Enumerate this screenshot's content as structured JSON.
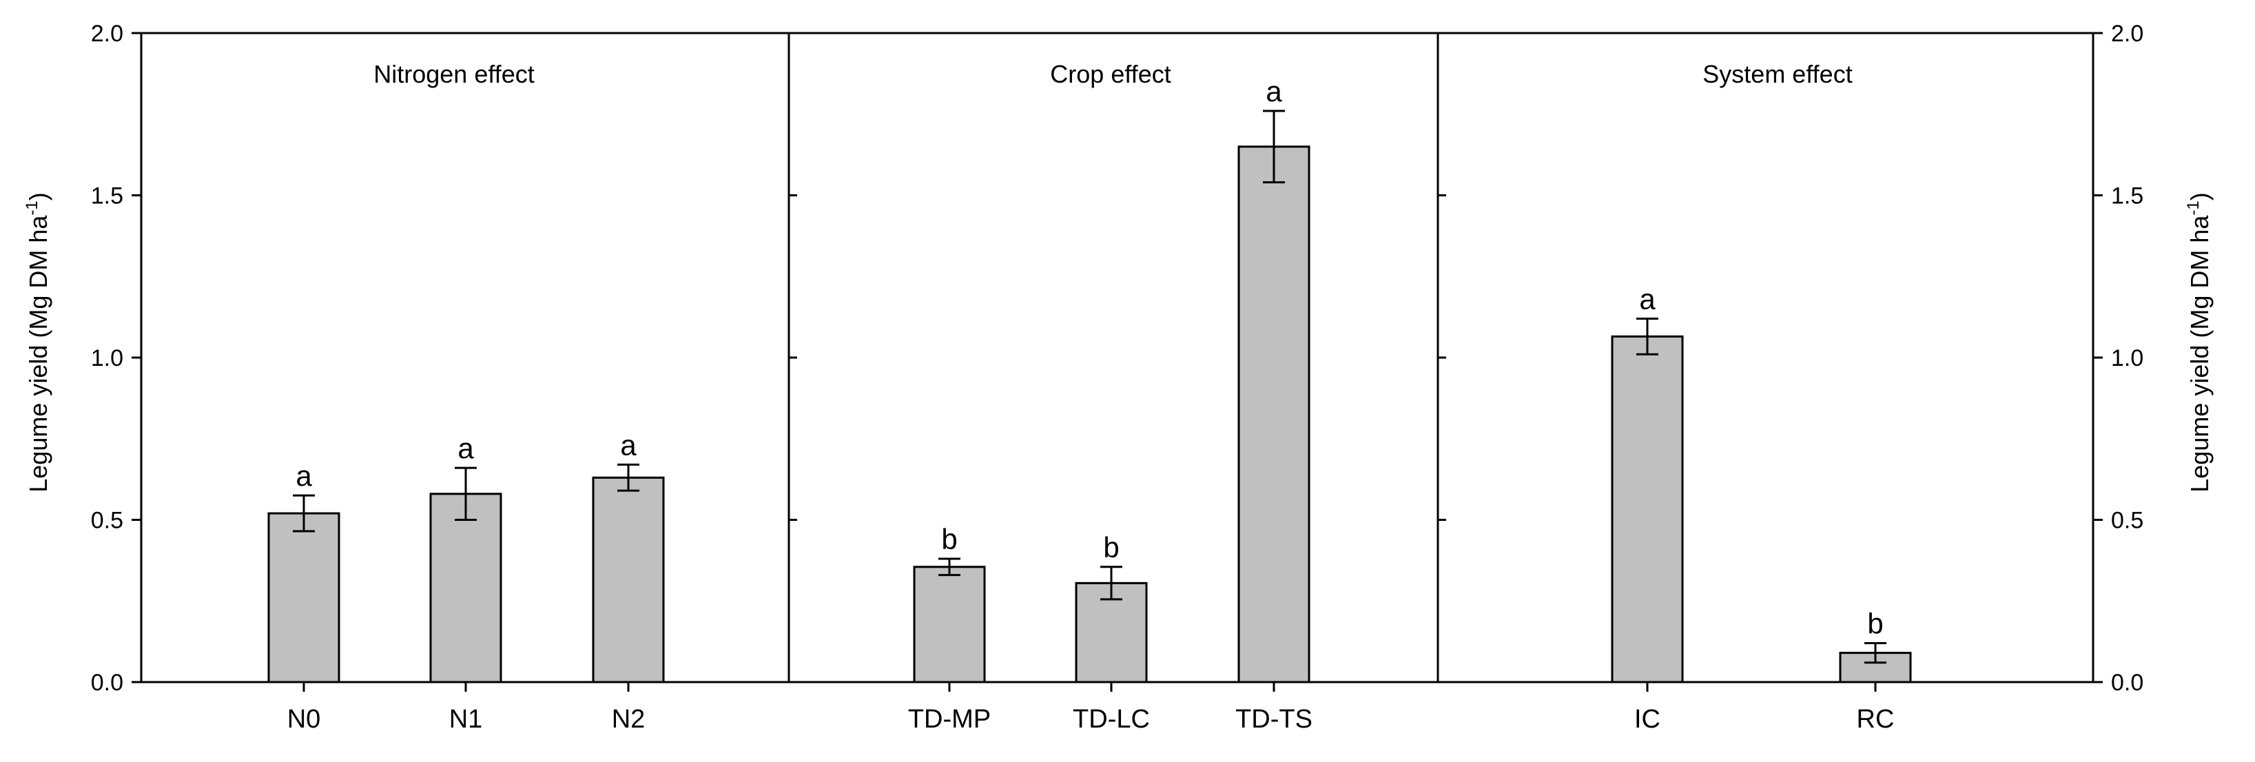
{
  "chart_data": {
    "type": "bar",
    "ylabel": "Legume yield (Mg DM ha",
    "ylabel_superscript": "-1",
    "ylabel_close": ")",
    "ylim": [
      0,
      2.0
    ],
    "yticks": [
      0.0,
      0.5,
      1.0,
      1.5,
      2.0
    ],
    "ytick_labels": [
      "0.0",
      "0.5",
      "1.0",
      "1.5",
      "2.0"
    ],
    "panels": [
      {
        "title": "Nitrogen effect",
        "categories": [
          "N0",
          "N1",
          "N2"
        ],
        "values": [
          0.52,
          0.58,
          0.63
        ],
        "errors": [
          0.055,
          0.08,
          0.04
        ],
        "letters": [
          "a",
          "a",
          "a"
        ]
      },
      {
        "title": "Crop effect",
        "categories": [
          "TD-MP",
          "TD-LC",
          "TD-TS"
        ],
        "values": [
          0.355,
          0.305,
          1.65
        ],
        "errors": [
          0.025,
          0.05,
          0.11
        ],
        "letters": [
          "b",
          "b",
          "a"
        ]
      },
      {
        "title": "System effect",
        "categories": [
          "IC",
          "RC"
        ],
        "values": [
          1.065,
          0.09
        ],
        "errors": [
          0.055,
          0.03
        ],
        "letters": [
          "a",
          "b"
        ]
      }
    ]
  }
}
